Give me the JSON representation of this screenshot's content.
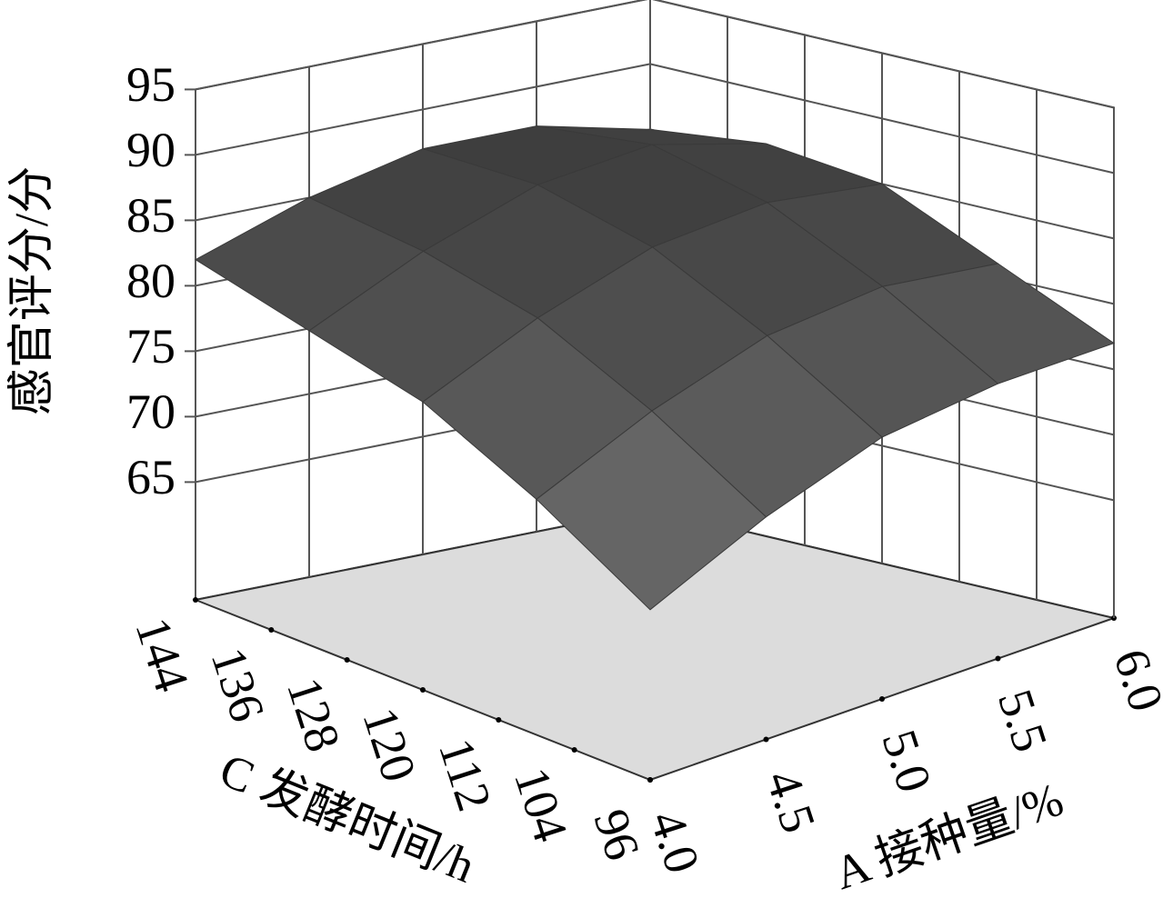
{
  "chart_data": {
    "type": "surface",
    "xlabel": "A 接种量/%",
    "ylabel": "C 发酵时间/h",
    "zlabel": "感官评分/分",
    "x": [
      4.0,
      4.5,
      5.0,
      5.5,
      6.0
    ],
    "y": [
      96,
      108,
      120,
      132,
      144
    ],
    "z": [
      [
        69,
        73,
        76,
        77,
        77
      ],
      [
        74,
        78,
        81,
        82,
        81
      ],
      [
        78,
        82,
        85,
        86,
        85
      ],
      [
        80,
        84,
        87,
        88,
        86
      ],
      [
        82,
        85,
        87,
        87,
        85
      ]
    ],
    "xlim": [
      4.0,
      6.0
    ],
    "xticks": [
      {
        "value": 4.0,
        "label": "4.0"
      },
      4.5,
      {
        "value": 5.0,
        "label": "5.0"
      },
      5.5,
      {
        "value": 6.0,
        "label": "6.0"
      }
    ],
    "ylim": [
      96,
      144
    ],
    "yticks": [
      96,
      104,
      112,
      120,
      128,
      136,
      144
    ],
    "zlim": [
      56,
      95
    ],
    "zticks": [
      65,
      70,
      75,
      80,
      85,
      90,
      95
    ],
    "color": "#3a3a3a",
    "grid": true
  }
}
